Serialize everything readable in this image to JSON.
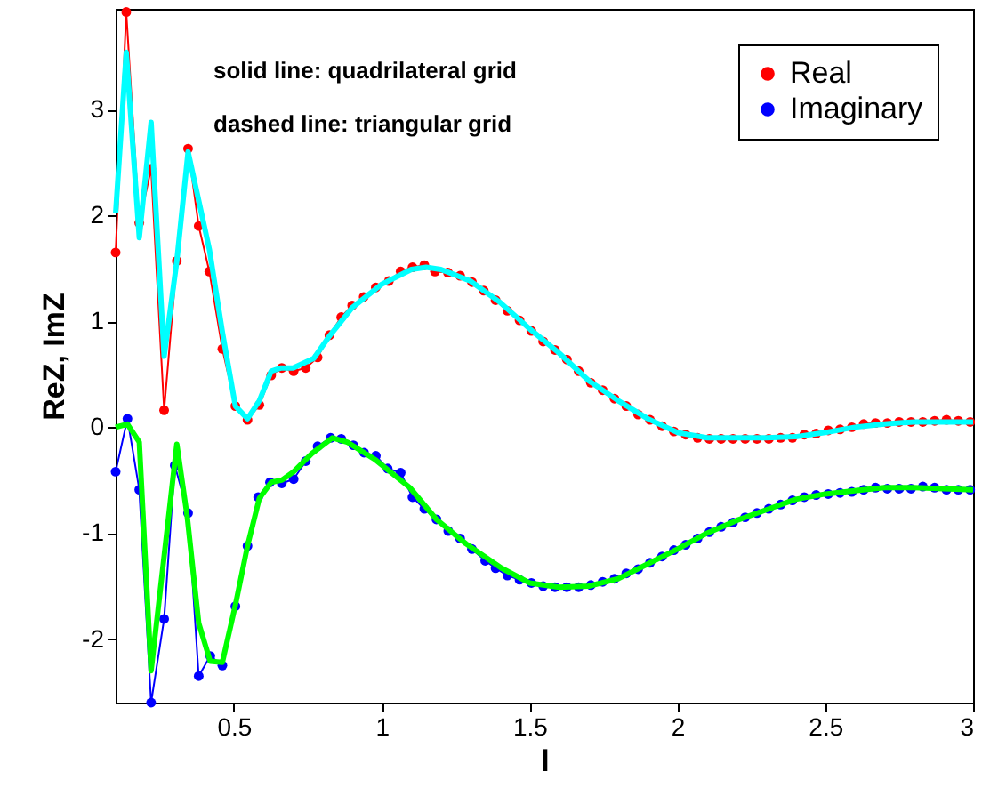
{
  "chart_data": {
    "type": "line",
    "xlabel": "l",
    "ylabel": "ReZ, ImZ",
    "annotations": [
      "solid line: quadrilateral grid",
      "dashed line: triangular grid"
    ],
    "xlim": [
      0.1,
      3
    ],
    "xticks": [
      0.5,
      1,
      1.5,
      2,
      2.5,
      3
    ],
    "ylim": [
      -2.6,
      3.95
    ],
    "yticks": [
      -2,
      -1,
      0,
      1,
      2,
      3
    ],
    "grid": false,
    "legend": "top right",
    "series": [
      {
        "name": "Real",
        "color": "#ff0000",
        "marker": "circle",
        "x": [
          0.1,
          0.136,
          0.18,
          0.22,
          0.264,
          0.307,
          0.345,
          0.381,
          0.417,
          0.461,
          0.505,
          0.546,
          0.586,
          0.626,
          0.662,
          0.702,
          0.743,
          0.783,
          0.823,
          0.863,
          0.9,
          0.939,
          0.98,
          1.024,
          1.064,
          1.104,
          1.144,
          1.18,
          1.224,
          1.265,
          1.305,
          1.345,
          1.385,
          1.425,
          1.466,
          1.506,
          1.546,
          1.586,
          1.626,
          1.666,
          1.707,
          1.747,
          1.787,
          1.827,
          1.867,
          1.907,
          1.948,
          1.988,
          2.028,
          2.068,
          2.108,
          2.148,
          2.188,
          2.229,
          2.269,
          2.309,
          2.349,
          2.389,
          2.429,
          2.469,
          2.51,
          2.55,
          2.59,
          2.63,
          2.67,
          2.71,
          2.75,
          2.79,
          2.83,
          2.87,
          2.91,
          2.95,
          2.99
        ],
        "values": [
          1.65,
          3.92,
          1.93,
          2.44,
          0.16,
          1.57,
          2.63,
          1.9,
          1.47,
          0.74,
          0.2,
          0.07,
          0.21,
          0.49,
          0.56,
          0.53,
          0.56,
          0.66,
          0.87,
          1.04,
          1.15,
          1.23,
          1.32,
          1.38,
          1.47,
          1.51,
          1.53,
          1.47,
          1.46,
          1.43,
          1.37,
          1.29,
          1.2,
          1.1,
          1.01,
          0.91,
          0.81,
          0.73,
          0.64,
          0.53,
          0.42,
          0.35,
          0.27,
          0.2,
          0.12,
          0.07,
          0.01,
          -0.04,
          -0.07,
          -0.1,
          -0.11,
          -0.11,
          -0.11,
          -0.11,
          -0.11,
          -0.11,
          -0.1,
          -0.1,
          -0.07,
          -0.06,
          -0.03,
          -0.02,
          0.0,
          0.03,
          0.04,
          0.04,
          0.05,
          0.05,
          0.05,
          0.06,
          0.07,
          0.06,
          0.05
        ]
      },
      {
        "name": "Imaginary",
        "color": "#0000ff",
        "marker": "circle",
        "x": [
          0.1,
          0.14,
          0.18,
          0.22,
          0.264,
          0.3,
          0.345,
          0.381,
          0.42,
          0.461,
          0.505,
          0.546,
          0.582,
          0.622,
          0.662,
          0.702,
          0.743,
          0.783,
          0.827,
          0.863,
          0.904,
          0.94,
          0.98,
          1.02,
          1.064,
          1.104,
          1.144,
          1.185,
          1.225,
          1.265,
          1.305,
          1.35,
          1.385,
          1.425,
          1.466,
          1.506,
          1.546,
          1.586,
          1.626,
          1.666,
          1.707,
          1.747,
          1.787,
          1.827,
          1.867,
          1.907,
          1.948,
          1.988,
          2.028,
          2.068,
          2.108,
          2.148,
          2.188,
          2.229,
          2.269,
          2.309,
          2.349,
          2.389,
          2.429,
          2.469,
          2.51,
          2.55,
          2.59,
          2.63,
          2.67,
          2.71,
          2.75,
          2.79,
          2.83,
          2.87,
          2.91,
          2.95,
          2.99
        ],
        "values": [
          -0.42,
          0.08,
          -0.59,
          -2.6,
          -1.81,
          -0.36,
          -0.81,
          -2.35,
          -2.16,
          -2.25,
          -1.69,
          -1.12,
          -0.66,
          -0.52,
          -0.53,
          -0.49,
          -0.32,
          -0.18,
          -0.1,
          -0.11,
          -0.17,
          -0.24,
          -0.27,
          -0.39,
          -0.43,
          -0.66,
          -0.77,
          -0.87,
          -0.98,
          -1.05,
          -1.15,
          -1.26,
          -1.33,
          -1.4,
          -1.44,
          -1.47,
          -1.5,
          -1.51,
          -1.51,
          -1.51,
          -1.49,
          -1.46,
          -1.43,
          -1.38,
          -1.34,
          -1.28,
          -1.22,
          -1.16,
          -1.11,
          -1.05,
          -0.99,
          -0.94,
          -0.9,
          -0.85,
          -0.81,
          -0.77,
          -0.73,
          -0.69,
          -0.66,
          -0.64,
          -0.63,
          -0.62,
          -0.61,
          -0.59,
          -0.57,
          -0.58,
          -0.58,
          -0.58,
          -0.56,
          -0.57,
          -0.59,
          -0.59,
          -0.59
        ]
      },
      {
        "color": "#00ffff",
        "marker": "none",
        "x": [
          0.1,
          0.136,
          0.18,
          0.22,
          0.264,
          0.307,
          0.345,
          0.417,
          0.461,
          0.505,
          0.546,
          0.586,
          0.626,
          0.66,
          0.7,
          0.77,
          0.82,
          0.9,
          1.0,
          1.1,
          1.15,
          1.2,
          1.3,
          1.4,
          1.5,
          1.6,
          1.7,
          1.8,
          1.9,
          2.0,
          2.1,
          2.2,
          2.3,
          2.4,
          2.5,
          2.6,
          2.7,
          2.8,
          2.9,
          3.0
        ],
        "values": [
          2.02,
          3.54,
          1.79,
          2.88,
          0.67,
          1.57,
          2.6,
          1.68,
          0.9,
          0.2,
          0.08,
          0.25,
          0.53,
          0.56,
          0.56,
          0.65,
          0.85,
          1.13,
          1.35,
          1.49,
          1.51,
          1.49,
          1.38,
          1.18,
          0.93,
          0.7,
          0.44,
          0.25,
          0.08,
          -0.05,
          -0.1,
          -0.1,
          -0.1,
          -0.09,
          -0.05,
          0.0,
          0.03,
          0.05,
          0.05,
          0.05
        ]
      },
      {
        "color": "#00ff00",
        "marker": "none",
        "x": [
          0.1,
          0.14,
          0.18,
          0.22,
          0.307,
          0.342,
          0.381,
          0.42,
          0.461,
          0.505,
          0.546,
          0.586,
          0.626,
          0.662,
          0.702,
          0.763,
          0.833,
          0.883,
          0.98,
          1.095,
          1.185,
          1.285,
          1.405,
          1.5,
          1.6,
          1.7,
          1.8,
          1.9,
          2.0,
          2.1,
          2.2,
          2.3,
          2.4,
          2.5,
          2.6,
          2.7,
          2.8,
          2.9,
          3.0
        ],
        "values": [
          0.0,
          0.03,
          -0.14,
          -2.3,
          -0.16,
          -0.84,
          -1.85,
          -2.21,
          -2.22,
          -1.68,
          -1.12,
          -0.67,
          -0.52,
          -0.5,
          -0.42,
          -0.25,
          -0.1,
          -0.14,
          -0.31,
          -0.57,
          -0.87,
          -1.1,
          -1.33,
          -1.47,
          -1.51,
          -1.5,
          -1.43,
          -1.29,
          -1.15,
          -1.0,
          -0.88,
          -0.78,
          -0.68,
          -0.63,
          -0.6,
          -0.57,
          -0.57,
          -0.58,
          -0.59
        ]
      }
    ]
  }
}
